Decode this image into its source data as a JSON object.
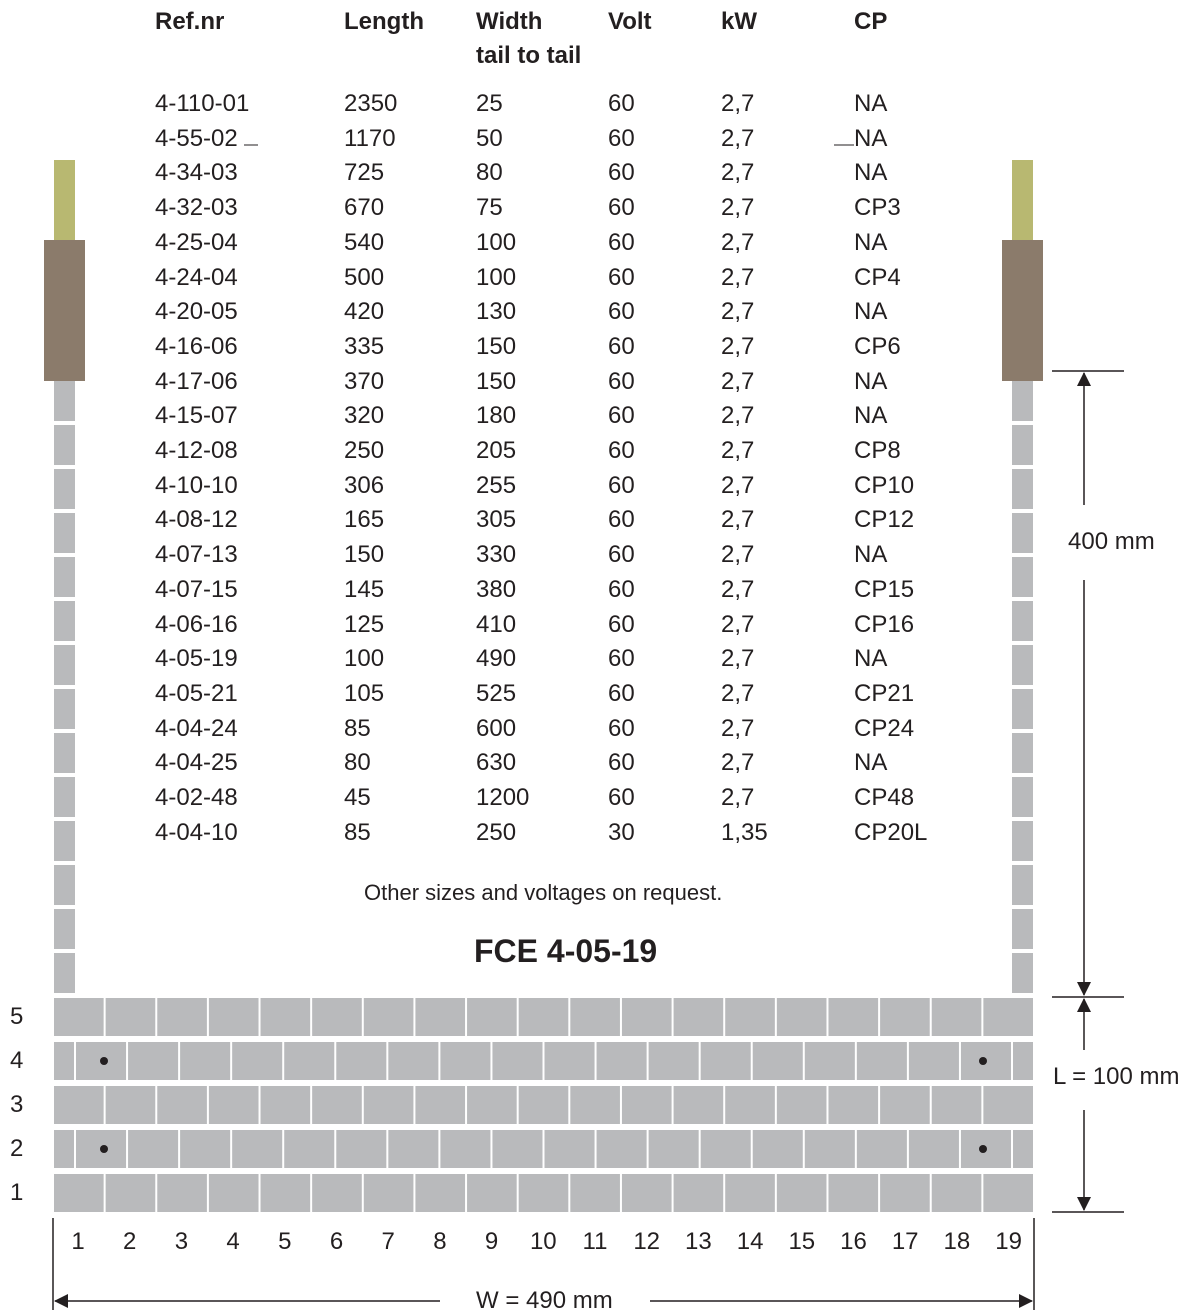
{
  "table": {
    "headers": [
      "Ref.nr",
      "Length",
      "Width",
      "Volt",
      "kW",
      "CP"
    ],
    "width_subheader": "tail to tail",
    "rows": [
      [
        "4-110-01",
        "2350",
        "25",
        "60",
        "2,7",
        "NA"
      ],
      [
        "4-55-02",
        "1170",
        "50",
        "60",
        "2,7",
        "NA"
      ],
      [
        "4-34-03",
        "725",
        "80",
        "60",
        "2,7",
        "NA"
      ],
      [
        "4-32-03",
        "670",
        "75",
        "60",
        "2,7",
        "CP3"
      ],
      [
        "4-25-04",
        "540",
        "100",
        "60",
        "2,7",
        "NA"
      ],
      [
        "4-24-04",
        "500",
        "100",
        "60",
        "2,7",
        "CP4"
      ],
      [
        "4-20-05",
        "420",
        "130",
        "60",
        "2,7",
        "NA"
      ],
      [
        "4-16-06",
        "335",
        "150",
        "60",
        "2,7",
        "CP6"
      ],
      [
        "4-17-06",
        "370",
        "150",
        "60",
        "2,7",
        "NA"
      ],
      [
        "4-15-07",
        "320",
        "180",
        "60",
        "2,7",
        "NA"
      ],
      [
        "4-12-08",
        "250",
        "205",
        "60",
        "2,7",
        "CP8"
      ],
      [
        "4-10-10",
        "306",
        "255",
        "60",
        "2,7",
        "CP10"
      ],
      [
        "4-08-12",
        "165",
        "305",
        "60",
        "2,7",
        "CP12"
      ],
      [
        "4-07-13",
        "150",
        "330",
        "60",
        "2,7",
        "NA"
      ],
      [
        "4-07-15",
        "145",
        "380",
        "60",
        "2,7",
        "CP15"
      ],
      [
        "4-06-16",
        "125",
        "410",
        "60",
        "2,7",
        "CP16"
      ],
      [
        "4-05-19",
        "100",
        "490",
        "60",
        "2,7",
        "NA"
      ],
      [
        "4-05-21",
        "105",
        "525",
        "60",
        "2,7",
        "CP21"
      ],
      [
        "4-04-24",
        "85",
        "600",
        "60",
        "2,7",
        "CP24"
      ],
      [
        "4-04-25",
        "80",
        "630",
        "60",
        "2,7",
        "NA"
      ],
      [
        "4-02-48",
        "45",
        "1200",
        "60",
        "2,7",
        "CP48"
      ],
      [
        "4-04-10",
        "85",
        "250",
        "30",
        "1,35",
        "CP20L"
      ]
    ]
  },
  "note": "Other sizes and voltages on request.",
  "model": "FCE 4-05-19",
  "dimensions": {
    "tail_length": "400 mm",
    "length": "L = 100 mm",
    "width": "W = 490 mm"
  },
  "row_numbers": [
    "5",
    "4",
    "3",
    "2",
    "1"
  ],
  "column_numbers": [
    "1",
    "2",
    "3",
    "4",
    "5",
    "6",
    "7",
    "8",
    "9",
    "10",
    "11",
    "12",
    "13",
    "14",
    "15",
    "16",
    "17",
    "18",
    "19"
  ],
  "colors": {
    "pad": "#b9babc",
    "tail_insulation": "#8b7b6b",
    "wire": "#b8b871",
    "text": "#231f20"
  }
}
